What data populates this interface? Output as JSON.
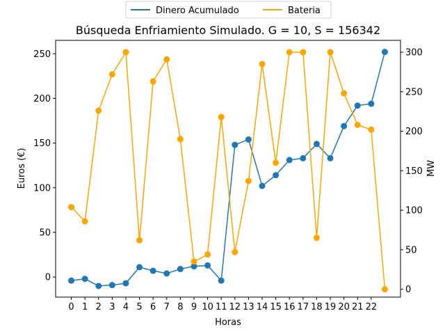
{
  "chart_data": {
    "type": "line",
    "title": "Búsqueda Enfriamiento Simulado. G = 10, S = 156342",
    "xlabel": "Horas",
    "ylabel_left": "Euros (€)",
    "ylabel_right": "MW",
    "x_ticks": [
      "0",
      "1",
      "2",
      "3",
      "4",
      "5",
      "6",
      "7",
      "8",
      "9",
      "10",
      "11",
      "12",
      "13",
      "14",
      "15",
      "16",
      "17",
      "18",
      "19",
      "20",
      "21",
      "22"
    ],
    "xlim": [
      -1.15,
      24.15
    ],
    "ylim_left": [
      -22.5,
      265
    ],
    "ylim_right": [
      -10,
      315
    ],
    "y_ticks_left": [
      0,
      50,
      100,
      150,
      200,
      250
    ],
    "y_ticks_right": [
      0,
      50,
      100,
      150,
      200,
      250,
      300
    ],
    "legend_position": "top-center",
    "series": [
      {
        "name": "Dinero Acumulado",
        "axis": "left",
        "color": "#1f77b4",
        "x": [
          0,
          1,
          2,
          3,
          4,
          5,
          6,
          7,
          8,
          9,
          10,
          11,
          12,
          13,
          14,
          15,
          16,
          17,
          18,
          19,
          20,
          21,
          22,
          23
        ],
        "values": [
          -4,
          -2,
          -10,
          -9,
          -7,
          11,
          7,
          4,
          9,
          12,
          13,
          -4,
          148,
          154,
          102,
          114,
          131,
          133,
          149,
          133,
          169,
          192,
          194,
          252
        ]
      },
      {
        "name": "Bateria",
        "axis": "right",
        "color": "#ffa500",
        "x": [
          0,
          1,
          2,
          3,
          4,
          5,
          6,
          7,
          8,
          9,
          10,
          11,
          12,
          13,
          14,
          15,
          16,
          17,
          18,
          19,
          20,
          21,
          22,
          23
        ],
        "values": [
          104,
          86,
          226,
          272,
          300,
          62,
          263,
          291,
          190,
          35,
          44,
          218,
          47,
          137,
          285,
          160,
          300,
          300,
          65,
          300,
          248,
          208,
          202,
          0
        ]
      }
    ]
  }
}
